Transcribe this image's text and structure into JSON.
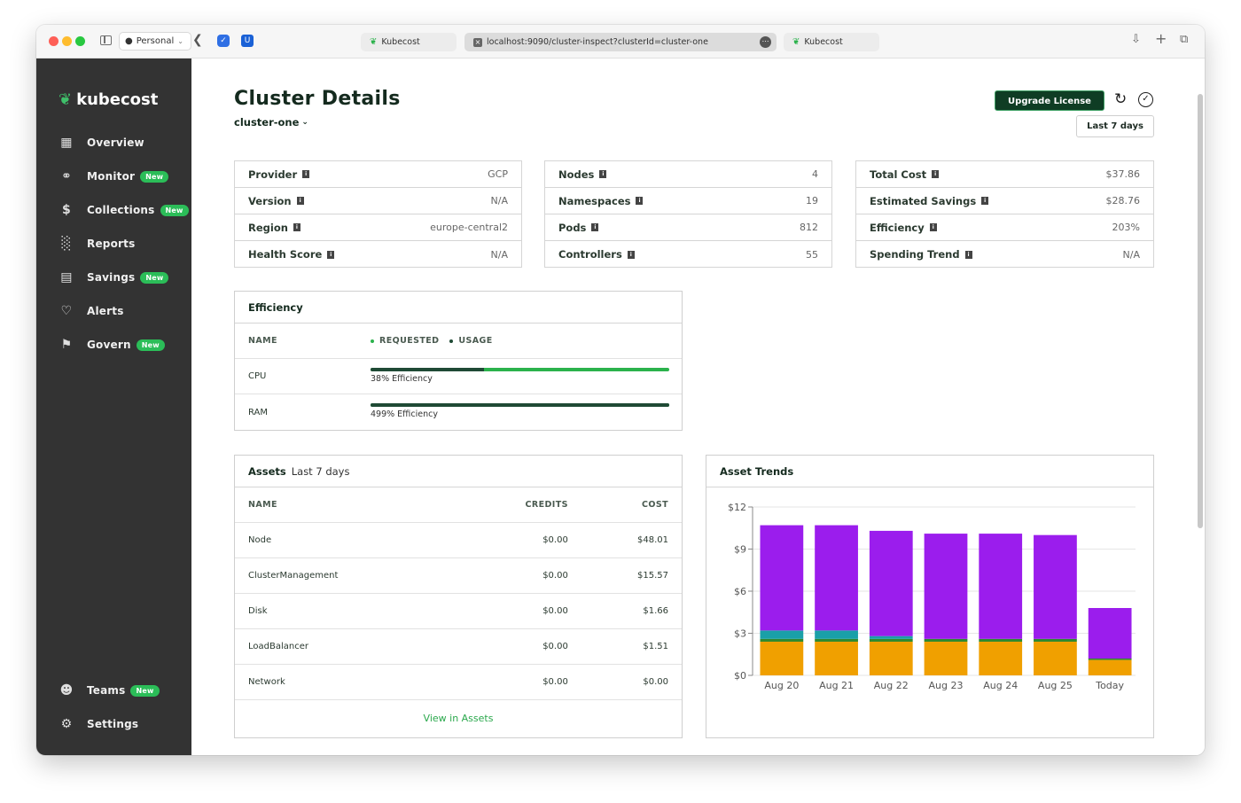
{
  "browser": {
    "profile_label": "Personal",
    "tabs": [
      {
        "label": "Kubecost"
      },
      {
        "label": "localhost:9090/cluster-inspect?clusterId=cluster-one"
      },
      {
        "label": "Kubecost"
      }
    ]
  },
  "sidebar": {
    "brand": "kubecost",
    "items": [
      {
        "label": "Overview",
        "icon": "grid-icon"
      },
      {
        "label": "Monitor",
        "icon": "pulse-icon",
        "badge": "New"
      },
      {
        "label": "Collections",
        "icon": "dollar-bracket-icon",
        "badge": "New"
      },
      {
        "label": "Reports",
        "icon": "bar-chart-icon"
      },
      {
        "label": "Savings",
        "icon": "money-icon",
        "badge": "New"
      },
      {
        "label": "Alerts",
        "icon": "bell-icon"
      },
      {
        "label": "Govern",
        "icon": "govern-icon",
        "badge": "New"
      }
    ],
    "bottom_items": [
      {
        "label": "Teams",
        "icon": "people-icon",
        "badge": "New"
      },
      {
        "label": "Settings",
        "icon": "gear-icon"
      }
    ]
  },
  "header": {
    "title": "Cluster Details",
    "cluster": "cluster-one",
    "upgrade_label": "Upgrade License",
    "date_range": "Last 7 days"
  },
  "stats": {
    "col1": [
      {
        "label": "Provider",
        "value": "GCP"
      },
      {
        "label": "Version",
        "value": "N/A"
      },
      {
        "label": "Region",
        "value": "europe-central2"
      },
      {
        "label": "Health Score",
        "value": "N/A"
      }
    ],
    "col2": [
      {
        "label": "Nodes",
        "value": "4"
      },
      {
        "label": "Namespaces",
        "value": "19"
      },
      {
        "label": "Pods",
        "value": "812"
      },
      {
        "label": "Controllers",
        "value": "55"
      }
    ],
    "col3": [
      {
        "label": "Total Cost",
        "value": "$37.86"
      },
      {
        "label": "Estimated Savings",
        "value": "$28.76"
      },
      {
        "label": "Efficiency",
        "value": "203%"
      },
      {
        "label": "Spending Trend",
        "value": "N/A"
      }
    ]
  },
  "efficiency": {
    "title": "Efficiency",
    "col_name": "NAME",
    "legend_requested": "REQUESTED",
    "legend_usage": "USAGE",
    "colors": {
      "requested": "#2bb24c",
      "usage": "#1f4a35"
    },
    "rows": [
      {
        "name": "CPU",
        "caption": "38% Efficiency",
        "usage_fraction": 0.38
      },
      {
        "name": "RAM",
        "caption": "499% Efficiency",
        "usage_fraction": 1.0
      }
    ]
  },
  "assets": {
    "title": "Assets",
    "subtitle": "Last 7 days",
    "headers": {
      "name": "NAME",
      "credits": "CREDITS",
      "cost": "COST"
    },
    "rows": [
      {
        "name": "Node",
        "credits": "$0.00",
        "cost": "$48.01"
      },
      {
        "name": "ClusterManagement",
        "credits": "$0.00",
        "cost": "$15.57"
      },
      {
        "name": "Disk",
        "credits": "$0.00",
        "cost": "$1.66"
      },
      {
        "name": "LoadBalancer",
        "credits": "$0.00",
        "cost": "$1.51"
      },
      {
        "name": "Network",
        "credits": "$0.00",
        "cost": "$0.00"
      }
    ],
    "link": "View in Assets"
  },
  "asset_trends": {
    "title": "Asset Trends"
  },
  "chart_data": {
    "type": "bar",
    "stacked": true,
    "title": "Asset Trends",
    "categories": [
      "Aug 20",
      "Aug 21",
      "Aug 22",
      "Aug 23",
      "Aug 24",
      "Aug 25",
      "Today"
    ],
    "yticks": [
      "$0",
      "$3",
      "$6",
      "$9",
      "$12"
    ],
    "ylim": [
      0,
      12
    ],
    "grid": true,
    "series": [
      {
        "color": "#f0a000",
        "values": [
          2.4,
          2.4,
          2.4,
          2.4,
          2.4,
          2.4,
          1.1
        ]
      },
      {
        "color": "#2f8a2f",
        "values": [
          0.2,
          0.2,
          0.2,
          0.2,
          0.2,
          0.2,
          0.1
        ]
      },
      {
        "color": "#1aa0a8",
        "values": [
          0.6,
          0.6,
          0.2,
          0.0,
          0.0,
          0.0,
          0.0
        ]
      },
      {
        "color": "#9b1ded",
        "values": [
          7.5,
          7.5,
          7.5,
          7.5,
          7.5,
          7.4,
          3.6
        ]
      }
    ]
  }
}
